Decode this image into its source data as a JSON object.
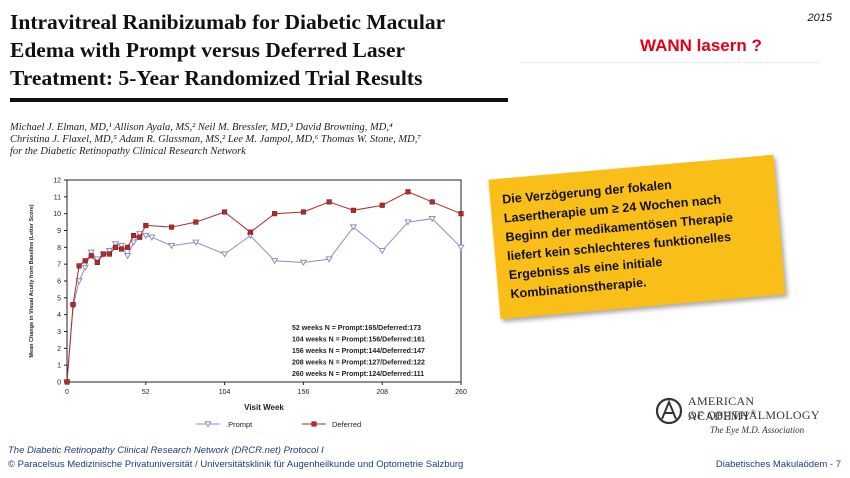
{
  "paper": {
    "title_lines": [
      "Intravitreal Ranibizumab for Diabetic Macular",
      "Edema with Prompt versus Deferred Laser",
      "Treatment: 5-Year Randomized Trial Results"
    ],
    "authors_lines": [
      "Michael J. Elman, MD,¹ Allison Ayala, MS,² Neil M. Bressler, MD,³ David Browning, MD,⁴",
      "Christina J. Flaxel, MD,⁵ Adam R. Glassman, MS,² Lee M. Jampol, MD,⁶ Thomas W. Stone, MD,⁷",
      "for the Diabetic Retinopathy Clinical Research Network"
    ]
  },
  "slide": {
    "year": "2015",
    "question": "WANN lasern ?",
    "note_lines": [
      "Die Verzögerung der fokalen",
      "Lasertherapie um ≥ 24 Wochen nach",
      "Beginn der medikamentösen Therapie",
      "liefert kein schlechteres funktionelles",
      "Ergebniss als eine initiale",
      "Kombinationstherapie."
    ],
    "note_color": "#f9bf18",
    "question_color": "#e0001a",
    "footer_source": "The Diabetic Retinopathy Clinical Research Network (DRCR.net) Protocol I",
    "footer_copy": "© Paracelsus Medizinische Privatuniversität / Universitätsklinik für Augenheilkunde und Optometrie Salzburg",
    "footer_slide": "Diabetisches Makulaödem - 7"
  },
  "logo": {
    "name_line1": "AMERICAN ACADEMY",
    "name_line2": "OF OPHTHALMOLOGY",
    "tagline": "The Eye M.D. Association",
    "registered_mark": "®"
  },
  "chart_data": {
    "type": "line",
    "title": "",
    "xlabel": "Visit Week",
    "ylabel": "Mean Change in Visual Acuity from Baseline (Letter Score)",
    "xlim": [
      0,
      260
    ],
    "ylim": [
      0,
      12
    ],
    "x_ticks": [
      0,
      52,
      104,
      156,
      208,
      260
    ],
    "y_ticks": [
      0,
      1,
      2,
      3,
      4,
      5,
      6,
      7,
      8,
      9,
      10,
      11,
      12
    ],
    "legend_position": "bottom",
    "annotations": [
      "52 weeks N = Prompt:165/Deferred:173",
      "104 weeks N = Prompt:156/Deferred:161",
      "156 weeks N = Prompt:144/Deferred:147",
      "208 weeks N = Prompt:127/Deferred:122",
      "260 weeks N = Prompt:124/Deferred:111"
    ],
    "series": [
      {
        "name": ".Prompt",
        "color": "#8a8fc4",
        "marker": "triangle-down",
        "points": [
          [
            0,
            0
          ],
          [
            4,
            4.5
          ],
          [
            8,
            6
          ],
          [
            12,
            6.8
          ],
          [
            16,
            7.7
          ],
          [
            20,
            7.3
          ],
          [
            24,
            7.6
          ],
          [
            28,
            7.8
          ],
          [
            32,
            8.2
          ],
          [
            36,
            8.1
          ],
          [
            40,
            7.5
          ],
          [
            44,
            8.3
          ],
          [
            48,
            8.8
          ],
          [
            52,
            8.7
          ],
          [
            56,
            8.6
          ],
          [
            69,
            8.1
          ],
          [
            85,
            8.3
          ],
          [
            104,
            7.6
          ],
          [
            121,
            8.7
          ],
          [
            137,
            7.2
          ],
          [
            156,
            7.1
          ],
          [
            173,
            7.3
          ],
          [
            189,
            9.2
          ],
          [
            208,
            7.8
          ],
          [
            225,
            9.5
          ],
          [
            241,
            9.7
          ],
          [
            260,
            8.0
          ]
        ]
      },
      {
        "name": "Deferred",
        "color": "#b22a2a",
        "marker": "square",
        "points": [
          [
            0,
            0
          ],
          [
            4,
            4.6
          ],
          [
            8,
            6.9
          ],
          [
            12,
            7.2
          ],
          [
            16,
            7.5
          ],
          [
            20,
            7.1
          ],
          [
            24,
            7.6
          ],
          [
            28,
            7.6
          ],
          [
            32,
            8.0
          ],
          [
            36,
            7.9
          ],
          [
            40,
            8.0
          ],
          [
            44,
            8.7
          ],
          [
            48,
            8.6
          ],
          [
            52,
            9.3
          ],
          [
            69,
            9.2
          ],
          [
            85,
            9.5
          ],
          [
            104,
            10.1
          ],
          [
            121,
            8.9
          ],
          [
            137,
            10.0
          ],
          [
            156,
            10.1
          ],
          [
            173,
            10.7
          ],
          [
            189,
            10.2
          ],
          [
            208,
            10.5
          ],
          [
            225,
            11.3
          ],
          [
            241,
            10.7
          ],
          [
            260,
            10.0
          ]
        ]
      }
    ]
  }
}
